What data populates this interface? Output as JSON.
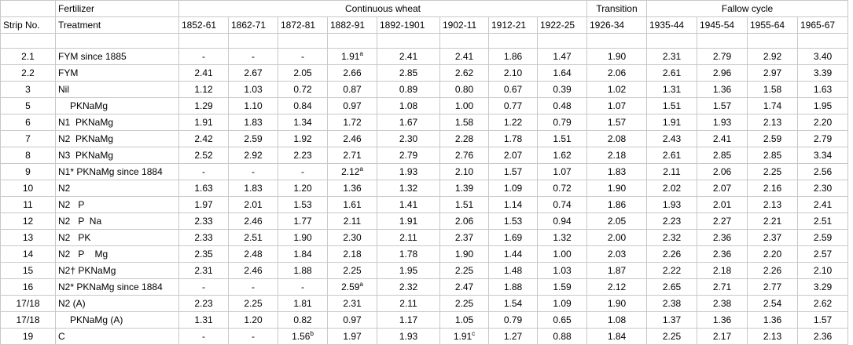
{
  "headers": {
    "strip": "Strip No.",
    "fert_top": "Fertilizer",
    "fert_bottom": "Treatment",
    "groups": [
      "Continuous wheat",
      "Transition",
      "Fallow cycle"
    ],
    "periods": [
      "1852-61",
      "1862-71",
      "1872-81",
      "1882-91",
      "1892-1901",
      "1902-11",
      "1912-21",
      "1922-25",
      "1926-34",
      "1935-44",
      "1945-54",
      "1955-64",
      "1965-67"
    ]
  },
  "rows": [
    {
      "strip": "2.1",
      "treatment": "FYM since 1885",
      "indent": false,
      "values": [
        "-",
        "-",
        "-",
        "1.91",
        "2.41",
        "2.41",
        "1.86",
        "1.47",
        "1.90",
        "2.31",
        "2.79",
        "2.92",
        "3.40"
      ],
      "sup": {
        "3": "a"
      }
    },
    {
      "strip": "2.2",
      "treatment": "FYM",
      "indent": false,
      "values": [
        "2.41",
        "2.67",
        "2.05",
        "2.66",
        "2.85",
        "2.62",
        "2.10",
        "1.64",
        "2.06",
        "2.61",
        "2.96",
        "2.97",
        "3.39"
      ],
      "sup": {}
    },
    {
      "strip": "3",
      "treatment": "Nil",
      "indent": false,
      "values": [
        "1.12",
        "1.03",
        "0.72",
        "0.87",
        "0.89",
        "0.80",
        "0.67",
        "0.39",
        "1.02",
        "1.31",
        "1.36",
        "1.58",
        "1.63"
      ],
      "sup": {}
    },
    {
      "strip": "5",
      "treatment": "PKNaMg",
      "indent": true,
      "values": [
        "1.29",
        "1.10",
        "0.84",
        "0.97",
        "1.08",
        "1.00",
        "0.77",
        "0.48",
        "1.07",
        "1.51",
        "1.57",
        "1.74",
        "1.95"
      ],
      "sup": {}
    },
    {
      "strip": "6",
      "treatment": "N1  PKNaMg",
      "indent": false,
      "values": [
        "1.91",
        "1.83",
        "1.34",
        "1.72",
        "1.67",
        "1.58",
        "1.22",
        "0.79",
        "1.57",
        "1.91",
        "1.93",
        "2.13",
        "2.20"
      ],
      "sup": {}
    },
    {
      "strip": "7",
      "treatment": "N2  PKNaMg",
      "indent": false,
      "values": [
        "2.42",
        "2.59",
        "1.92",
        "2.46",
        "2.30",
        "2.28",
        "1.78",
        "1.51",
        "2.08",
        "2.43",
        "2.41",
        "2.59",
        "2.79"
      ],
      "sup": {}
    },
    {
      "strip": "8",
      "treatment": "N3  PKNaMg",
      "indent": false,
      "values": [
        "2.52",
        "2.92",
        "2.23",
        "2.71",
        "2.79",
        "2.76",
        "2.07",
        "1.62",
        "2.18",
        "2.61",
        "2.85",
        "2.85",
        "3.34"
      ],
      "sup": {}
    },
    {
      "strip": "9",
      "treatment": "N1* PKNaMg since 1884",
      "indent": false,
      "values": [
        "-",
        "-",
        "-",
        "2.12",
        "1.93",
        "2.10",
        "1.57",
        "1.07",
        "1.83",
        "2.11",
        "2.06",
        "2.25",
        "2.56"
      ],
      "sup": {
        "3": "a"
      }
    },
    {
      "strip": "10",
      "treatment": "N2",
      "indent": false,
      "values": [
        "1.63",
        "1.83",
        "1.20",
        "1.36",
        "1.32",
        "1.39",
        "1.09",
        "0.72",
        "1.90",
        "2.02",
        "2.07",
        "2.16",
        "2.30"
      ],
      "sup": {}
    },
    {
      "strip": "11",
      "treatment": "N2   P",
      "indent": false,
      "values": [
        "1.97",
        "2.01",
        "1.53",
        "1.61",
        "1.41",
        "1.51",
        "1.14",
        "0.74",
        "1.86",
        "1.93",
        "2.01",
        "2.13",
        "2.41"
      ],
      "sup": {}
    },
    {
      "strip": "12",
      "treatment": "N2   P  Na",
      "indent": false,
      "values": [
        "2.33",
        "2.46",
        "1.77",
        "2.11",
        "1.91",
        "2.06",
        "1.53",
        "0.94",
        "2.05",
        "2.23",
        "2.27",
        "2.21",
        "2.51"
      ],
      "sup": {}
    },
    {
      "strip": "13",
      "treatment": "N2   PK",
      "indent": false,
      "values": [
        "2.33",
        "2.51",
        "1.90",
        "2.30",
        "2.11",
        "2.37",
        "1.69",
        "1.32",
        "2.00",
        "2.32",
        "2.36",
        "2.37",
        "2.59"
      ],
      "sup": {}
    },
    {
      "strip": "14",
      "treatment": "N2   P    Mg",
      "indent": false,
      "values": [
        "2.35",
        "2.48",
        "1.84",
        "2.18",
        "1.78",
        "1.90",
        "1.44",
        "1.00",
        "2.03",
        "2.26",
        "2.36",
        "2.20",
        "2.57"
      ],
      "sup": {}
    },
    {
      "strip": "15",
      "treatment": "N2† PKNaMg",
      "indent": false,
      "values": [
        "2.31",
        "2.46",
        "1.88",
        "2.25",
        "1.95",
        "2.25",
        "1.48",
        "1.03",
        "1.87",
        "2.22",
        "2.18",
        "2.26",
        "2.10"
      ],
      "sup": {}
    },
    {
      "strip": "16",
      "treatment": "N2* PKNaMg since 1884",
      "indent": false,
      "values": [
        "-",
        "-",
        "-",
        "2.59",
        "2.32",
        "2.47",
        "1.88",
        "1.59",
        "2.12",
        "2.65",
        "2.71",
        "2.77",
        "3.29"
      ],
      "sup": {
        "3": "a"
      }
    },
    {
      "strip": "17/18",
      "treatment": "N2 (A)",
      "indent": false,
      "values": [
        "2.23",
        "2.25",
        "1.81",
        "2.31",
        "2.11",
        "2.25",
        "1.54",
        "1.09",
        "1.90",
        "2.38",
        "2.38",
        "2.54",
        "2.62"
      ],
      "sup": {}
    },
    {
      "strip": "17/18",
      "treatment": "PKNaMg (A)",
      "indent": true,
      "values": [
        "1.31",
        "1.20",
        "0.82",
        "0.97",
        "1.17",
        "1.05",
        "0.79",
        "0.65",
        "1.08",
        "1.37",
        "1.36",
        "1.36",
        "1.57"
      ],
      "sup": {}
    },
    {
      "strip": "19",
      "treatment": "C",
      "indent": false,
      "values": [
        "-",
        "-",
        "1.56",
        "1.97",
        "1.93",
        "1.91",
        "1.27",
        "0.88",
        "1.84",
        "2.25",
        "2.17",
        "2.13",
        "2.36"
      ],
      "sup": {
        "2": "b",
        "5": "c"
      }
    }
  ]
}
